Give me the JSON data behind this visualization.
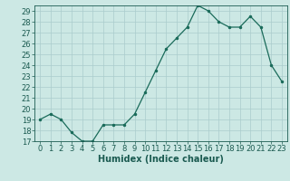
{
  "x": [
    0,
    1,
    2,
    3,
    4,
    5,
    6,
    7,
    8,
    9,
    10,
    11,
    12,
    13,
    14,
    15,
    16,
    17,
    18,
    19,
    20,
    21,
    22,
    23
  ],
  "y": [
    19,
    19.5,
    19,
    17.8,
    17,
    17,
    18.5,
    18.5,
    18.5,
    19.5,
    21.5,
    23.5,
    25.5,
    26.5,
    27.5,
    29.5,
    29,
    28,
    27.5,
    27.5,
    28.5,
    27.5,
    24,
    22.5
  ],
  "xlabel": "Humidex (Indice chaleur)",
  "ylim": [
    17,
    29.5
  ],
  "xlim": [
    -0.5,
    23.5
  ],
  "yticks": [
    17,
    18,
    19,
    20,
    21,
    22,
    23,
    24,
    25,
    26,
    27,
    28,
    29
  ],
  "xticks": [
    0,
    1,
    2,
    3,
    4,
    5,
    6,
    7,
    8,
    9,
    10,
    11,
    12,
    13,
    14,
    15,
    16,
    17,
    18,
    19,
    20,
    21,
    22,
    23
  ],
  "line_color": "#1a6b5a",
  "marker_color": "#1a6b5a",
  "bg_color": "#cce8e4",
  "grid_color": "#aacccc",
  "text_color": "#1a5a50",
  "font_size": 6.0,
  "xlabel_fontsize": 7.0
}
